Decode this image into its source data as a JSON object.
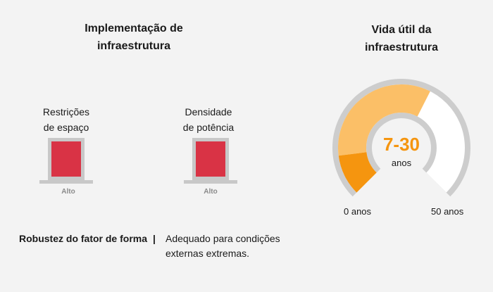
{
  "colors": {
    "background": "#f3f3f3",
    "bar_fill": "#d93345",
    "bar_frame": "#c8c8c8",
    "gauge_range": "#fbbf67",
    "gauge_start": "#f5950f",
    "gauge_track": "#cdcdcd",
    "gauge_empty": "#ffffff",
    "value_text": "#f5950f"
  },
  "deployment": {
    "title": "Implementação de\ninfraestrutura",
    "metrics": [
      {
        "label": "Restrições\nde espaço",
        "level": "Alto"
      },
      {
        "label": "Densidade\nde potência",
        "level": "Alto"
      }
    ]
  },
  "form_factor": {
    "label": "Robustez do fator de forma",
    "separator": "|",
    "description": "Adequado para condições externas extremas."
  },
  "lifespan": {
    "title": "Vida útil da\ninfraestrutura",
    "value": "7-30",
    "unit": "anos",
    "min_label": "0 anos",
    "max_label": "50 anos",
    "scale_min": 0,
    "scale_max": 50,
    "range_min": 7,
    "range_max": 30
  }
}
